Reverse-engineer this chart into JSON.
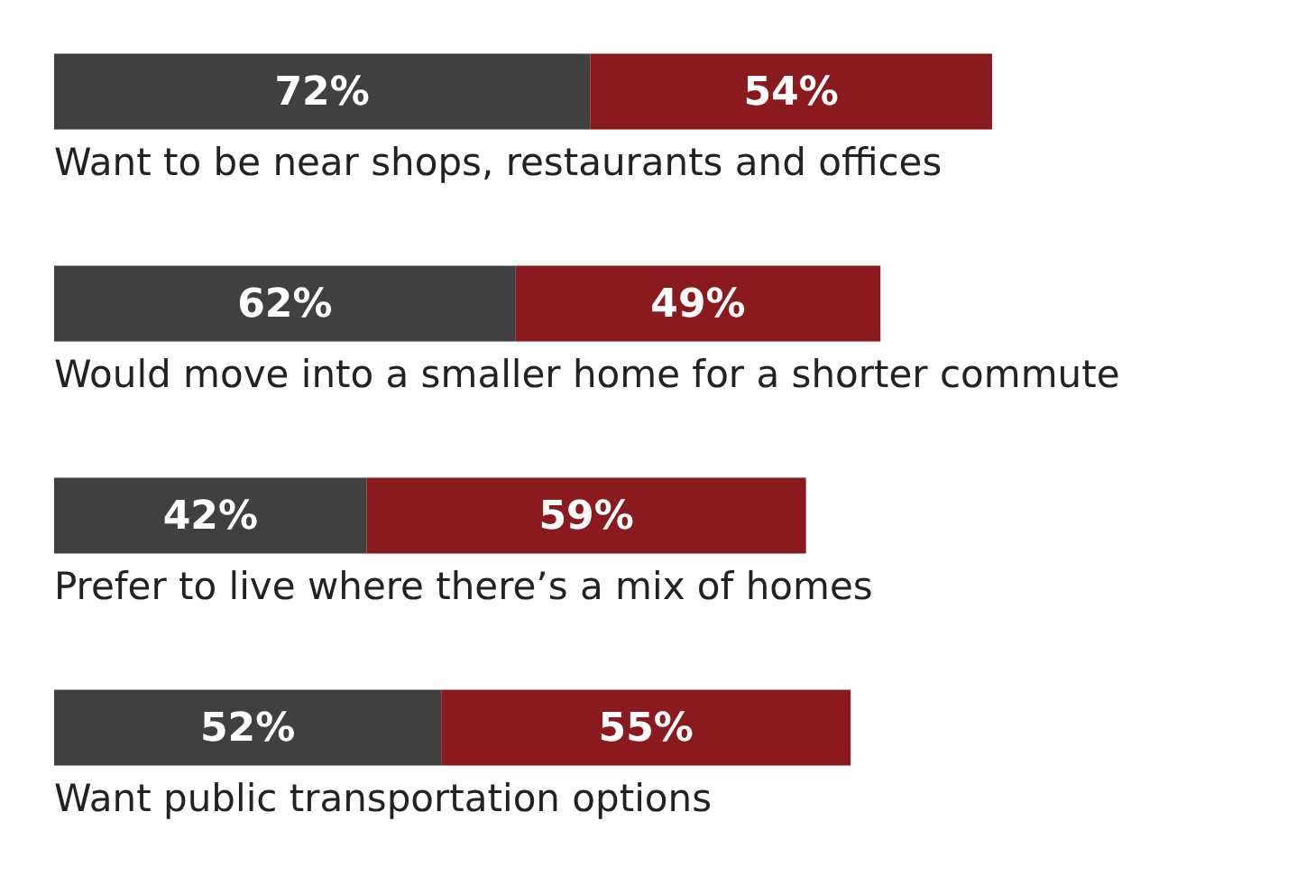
{
  "chart_data": {
    "type": "bar",
    "orientation": "horizontal",
    "stacked": true,
    "legend": false,
    "categories": [
      "Want to be near shops, restaurants and offices",
      "Would move into a smaller home for a  shorter commute",
      "Prefer to live where there’s a mix of homes",
      "Want public transportation options"
    ],
    "series": [
      {
        "color": "#404040",
        "values": [
          72,
          62,
          42,
          52
        ],
        "value_labels": [
          "72%",
          "62%",
          "42%",
          "52%"
        ]
      },
      {
        "color": "#8b1a1f",
        "values": [
          54,
          49,
          59,
          55
        ],
        "value_labels": [
          "54%",
          "49%",
          "59%",
          "55%"
        ]
      }
    ]
  }
}
